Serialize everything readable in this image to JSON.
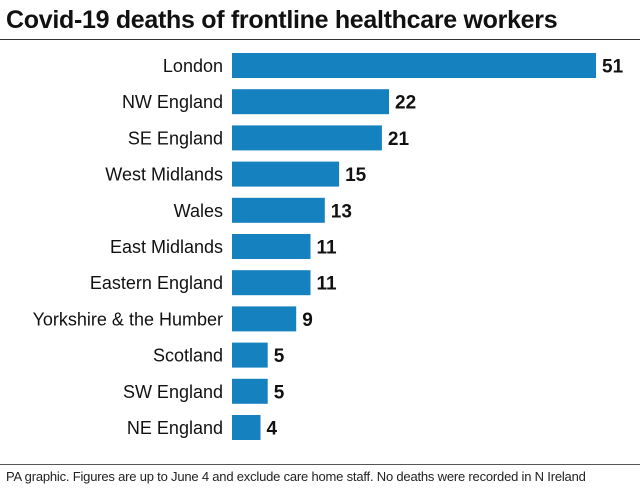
{
  "title": "Covid-19 deaths of frontline healthcare workers",
  "footnote": "PA graphic. Figures are up to June 4 and exclude care home staff. No deaths were recorded in N Ireland",
  "colors": {
    "bar": "#1681bf",
    "text": "#111111"
  },
  "chart_data": {
    "type": "bar",
    "orientation": "horizontal",
    "title": "Covid-19 deaths of frontline healthcare workers",
    "xlabel": "",
    "ylabel": "",
    "xlim": [
      0,
      51
    ],
    "grid": false,
    "legend": "none",
    "categories": [
      "London",
      "NW England",
      "SE England",
      "West Midlands",
      "Wales",
      "East Midlands",
      "Eastern England",
      "Yorkshire & the Humber",
      "Scotland",
      "SW England",
      "NE England"
    ],
    "values": [
      51,
      22,
      21,
      15,
      13,
      11,
      11,
      9,
      5,
      5,
      4
    ]
  }
}
